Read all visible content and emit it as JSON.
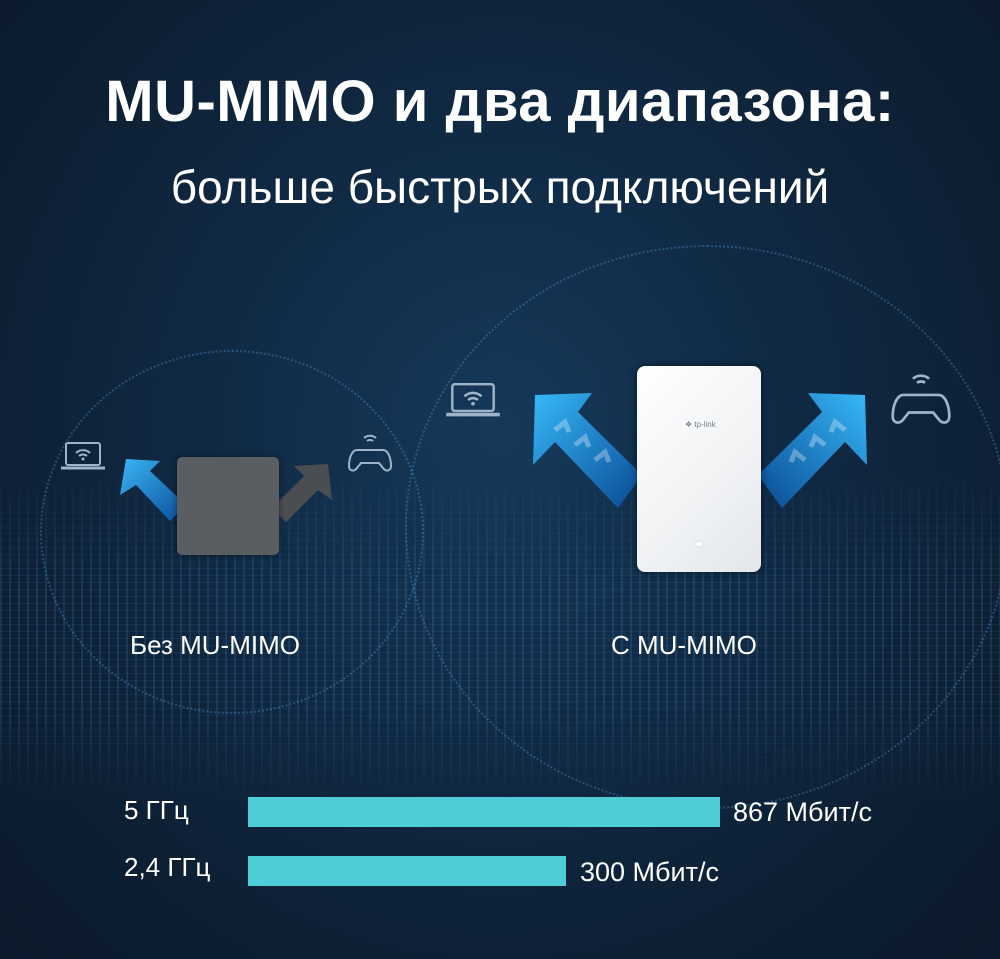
{
  "header": {
    "title": "MU-MIMO и два диапазона:",
    "subtitle": "больше быстрых подключений"
  },
  "comparison": {
    "without": {
      "label": "Без MU-MIMO",
      "device_color": "#5a5d61"
    },
    "with": {
      "label": "С MU-MIMO",
      "device_logo": "tp-link",
      "device_color": "#ffffff"
    },
    "icons": [
      "laptop-wifi-icon",
      "gamepad-wifi-icon"
    ]
  },
  "bands": [
    {
      "label": "5 ГГц",
      "value_label": "867 Мбит/с",
      "value": 867
    },
    {
      "label": "2,4 ГГц",
      "value_label": "300 Мбит/с",
      "value": 300
    }
  ],
  "colors": {
    "background": "#0f2438",
    "bar": "#4fcdd7",
    "arrow": "#1e9be8"
  }
}
